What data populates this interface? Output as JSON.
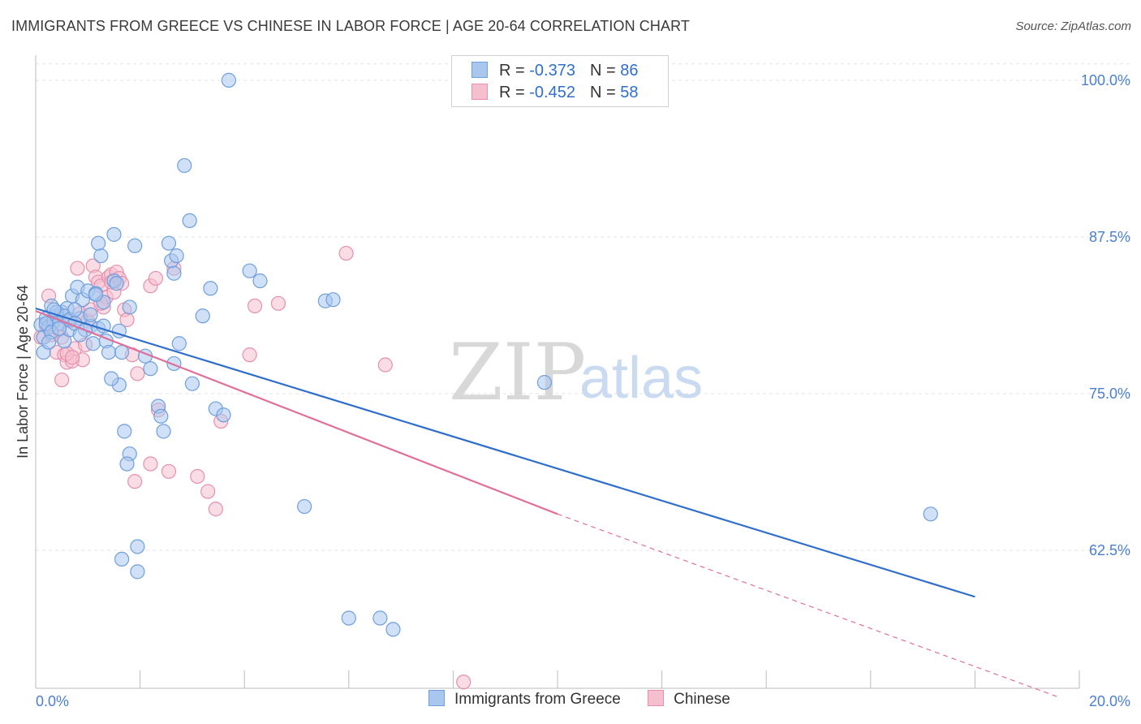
{
  "title": "IMMIGRANTS FROM GREECE VS CHINESE IN LABOR FORCE | AGE 20-64 CORRELATION CHART",
  "source": "Source: ZipAtlas.com",
  "watermark": {
    "zip": "ZIP",
    "atlas": "atlas"
  },
  "colors": {
    "greece_fill": "#a9c6ef",
    "greece_stroke": "#6f9fdc",
    "greece_line": "#2f6ecb",
    "chinese_fill": "#f6bfd0",
    "chinese_stroke": "#e690ad",
    "chinese_line": "#e0709a",
    "grid": "#e3e3e3",
    "axis_label": "#4a7fd0"
  },
  "legend_top": {
    "rows": [
      {
        "r_label": "R =",
        "r_value": "-0.373",
        "n_label": "N =",
        "n_value": "86"
      },
      {
        "r_label": "R =",
        "r_value": "-0.452",
        "n_label": "N =",
        "n_value": "58"
      }
    ]
  },
  "legend_bottom": {
    "greece": "Immigrants from Greece",
    "chinese": "Chinese"
  },
  "chart_data": {
    "type": "scatter",
    "title": "IMMIGRANTS FROM GREECE VS CHINESE IN LABOR FORCE | AGE 20-64 CORRELATION CHART",
    "xlabel": "",
    "ylabel": "In Labor Force | Age 20-64",
    "xlim": [
      0,
      20
    ],
    "ylim": [
      51.5,
      102
    ],
    "x_tick_labels": [
      {
        "value": 0,
        "label": "0.0%"
      },
      {
        "value": 20,
        "label": "20.0%"
      }
    ],
    "x_minor_ticks": [
      0,
      2,
      4,
      6,
      8,
      10,
      12,
      14,
      16,
      18,
      20
    ],
    "y_ticks": [
      {
        "value": 100,
        "label": "100.0%"
      },
      {
        "value": 87.5,
        "label": "87.5%"
      },
      {
        "value": 75,
        "label": "75.0%"
      },
      {
        "value": 62.5,
        "label": "62.5%"
      }
    ],
    "series": [
      {
        "name": "Immigrants from Greece",
        "r": -0.373,
        "n": 86,
        "trend": {
          "x0": 0,
          "y0": 81.8,
          "x1": 18,
          "y1": 58.8
        },
        "points": [
          [
            0.1,
            80.5
          ],
          [
            0.15,
            79.5
          ],
          [
            0.2,
            81.0
          ],
          [
            0.25,
            80.3
          ],
          [
            0.3,
            82.0
          ],
          [
            0.35,
            80.8
          ],
          [
            0.4,
            81.2
          ],
          [
            0.45,
            80.6
          ],
          [
            0.5,
            81.5
          ],
          [
            0.55,
            79.2
          ],
          [
            0.6,
            81.8
          ],
          [
            0.65,
            80.1
          ],
          [
            0.7,
            82.8
          ],
          [
            0.8,
            83.5
          ],
          [
            0.85,
            81.0
          ],
          [
            0.9,
            82.5
          ],
          [
            1.0,
            83.2
          ],
          [
            1.05,
            80.4
          ],
          [
            1.1,
            79.0
          ],
          [
            1.15,
            83.0
          ],
          [
            1.2,
            80.2
          ],
          [
            1.3,
            82.3
          ],
          [
            1.35,
            79.2
          ],
          [
            1.4,
            78.3
          ],
          [
            1.5,
            84.0
          ],
          [
            1.55,
            83.8
          ],
          [
            1.6,
            80.0
          ],
          [
            1.65,
            78.3
          ],
          [
            1.8,
            81.9
          ],
          [
            1.25,
            86.0
          ],
          [
            1.5,
            87.7
          ],
          [
            1.2,
            87.0
          ],
          [
            1.9,
            86.8
          ],
          [
            2.1,
            78.0
          ],
          [
            2.2,
            77.0
          ],
          [
            2.35,
            74.0
          ],
          [
            2.4,
            73.2
          ],
          [
            2.45,
            72.0
          ],
          [
            1.7,
            72.0
          ],
          [
            1.8,
            70.2
          ],
          [
            1.75,
            69.4
          ],
          [
            1.6,
            75.7
          ],
          [
            1.45,
            76.2
          ],
          [
            2.6,
            85.6
          ],
          [
            2.65,
            84.6
          ],
          [
            2.7,
            86.0
          ],
          [
            2.55,
            87.0
          ],
          [
            2.85,
            93.2
          ],
          [
            2.95,
            88.8
          ],
          [
            3.0,
            75.8
          ],
          [
            2.75,
            79.0
          ],
          [
            2.65,
            77.4
          ],
          [
            3.2,
            81.2
          ],
          [
            3.35,
            83.4
          ],
          [
            3.45,
            73.8
          ],
          [
            3.6,
            73.3
          ],
          [
            4.1,
            84.8
          ],
          [
            4.3,
            84.0
          ],
          [
            5.55,
            82.4
          ],
          [
            5.7,
            82.5
          ],
          [
            3.7,
            100.0
          ],
          [
            5.15,
            66.0
          ],
          [
            1.95,
            62.8
          ],
          [
            1.65,
            61.8
          ],
          [
            1.95,
            60.8
          ],
          [
            6.0,
            57.1
          ],
          [
            6.6,
            57.1
          ],
          [
            6.85,
            56.2
          ],
          [
            9.75,
            75.9
          ],
          [
            17.15,
            65.4
          ],
          [
            0.2,
            80.6
          ],
          [
            0.3,
            79.9
          ],
          [
            0.4,
            81.5
          ],
          [
            0.55,
            81.2
          ],
          [
            0.65,
            80.9
          ],
          [
            0.75,
            80.6
          ],
          [
            0.95,
            80.1
          ],
          [
            1.05,
            81.3
          ],
          [
            1.15,
            82.9
          ],
          [
            1.3,
            80.4
          ],
          [
            0.45,
            80.2
          ],
          [
            0.35,
            81.7
          ],
          [
            0.75,
            81.7
          ],
          [
            0.85,
            79.7
          ],
          [
            0.15,
            78.3
          ],
          [
            0.25,
            79.1
          ]
        ]
      },
      {
        "name": "Chinese",
        "r": -0.452,
        "n": 58,
        "trend": {
          "x0": 0,
          "y0": 81.6,
          "x1": 10,
          "y1": 65.4
        },
        "trend_dashed": {
          "x0": 10,
          "y0": 65.4,
          "x1": 19.6,
          "y1": 50.8
        },
        "points": [
          [
            0.1,
            79.5
          ],
          [
            0.2,
            80.4
          ],
          [
            0.25,
            82.8
          ],
          [
            0.3,
            79.7
          ],
          [
            0.35,
            81.1
          ],
          [
            0.4,
            78.3
          ],
          [
            0.45,
            80.1
          ],
          [
            0.5,
            76.1
          ],
          [
            0.55,
            78.1
          ],
          [
            0.6,
            77.5
          ],
          [
            0.65,
            80.8
          ],
          [
            0.7,
            77.6
          ],
          [
            0.75,
            78.6
          ],
          [
            0.8,
            85.0
          ],
          [
            0.85,
            81.4
          ],
          [
            0.9,
            77.7
          ],
          [
            1.0,
            80.8
          ],
          [
            1.05,
            81.7
          ],
          [
            1.1,
            85.2
          ],
          [
            1.15,
            84.3
          ],
          [
            1.2,
            83.9
          ],
          [
            1.25,
            83.6
          ],
          [
            1.3,
            81.9
          ],
          [
            1.35,
            82.7
          ],
          [
            1.4,
            84.3
          ],
          [
            1.45,
            84.5
          ],
          [
            1.5,
            83.1
          ],
          [
            1.55,
            84.7
          ],
          [
            1.6,
            84.2
          ],
          [
            1.65,
            83.8
          ],
          [
            1.7,
            81.7
          ],
          [
            1.75,
            80.9
          ],
          [
            1.85,
            78.1
          ],
          [
            1.95,
            76.6
          ],
          [
            2.2,
            83.6
          ],
          [
            2.3,
            84.2
          ],
          [
            2.65,
            85.0
          ],
          [
            2.35,
            73.7
          ],
          [
            2.2,
            69.4
          ],
          [
            2.55,
            68.8
          ],
          [
            1.9,
            68.0
          ],
          [
            3.1,
            68.4
          ],
          [
            3.3,
            67.2
          ],
          [
            3.45,
            65.8
          ],
          [
            3.55,
            72.8
          ],
          [
            4.2,
            82.0
          ],
          [
            4.65,
            82.2
          ],
          [
            4.1,
            78.1
          ],
          [
            5.95,
            86.2
          ],
          [
            6.7,
            77.3
          ],
          [
            8.2,
            52.0
          ],
          [
            0.3,
            80.5
          ],
          [
            0.5,
            79.5
          ],
          [
            0.6,
            78.2
          ],
          [
            0.7,
            77.9
          ],
          [
            0.95,
            78.9
          ],
          [
            1.25,
            82.2
          ],
          [
            1.45,
            83.9
          ]
        ]
      }
    ]
  }
}
